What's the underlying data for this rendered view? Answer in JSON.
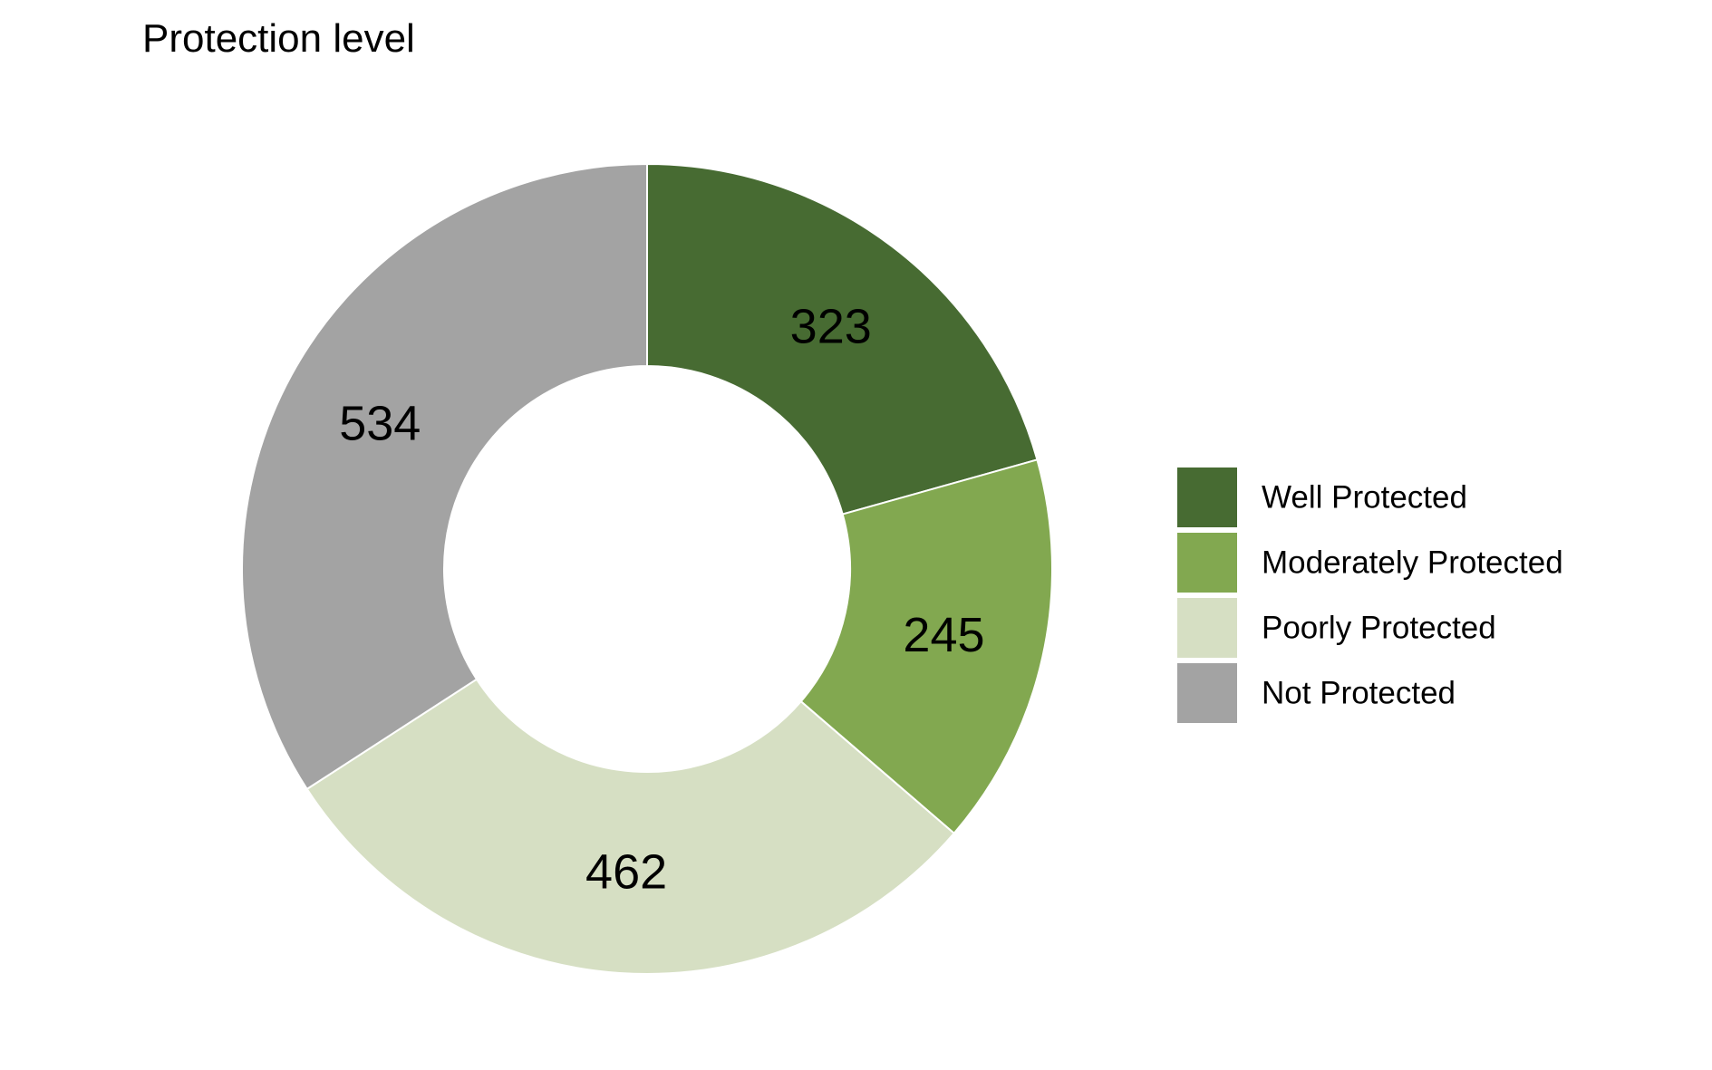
{
  "chart_data": {
    "type": "pie",
    "subtype": "donut",
    "title": "Protection level",
    "slices": [
      {
        "label": "Well Protected",
        "value": 323,
        "color": "#476b32"
      },
      {
        "label": "Moderately Protected",
        "value": 245,
        "color": "#82a850"
      },
      {
        "label": "Poorly Protected",
        "value": 462,
        "color": "#d6dfc3"
      },
      {
        "label": "Not Protected",
        "value": 534,
        "color": "#a3a3a3"
      }
    ],
    "legend_position": "right",
    "start_angle": "12 o'clock",
    "direction": "clockwise"
  }
}
